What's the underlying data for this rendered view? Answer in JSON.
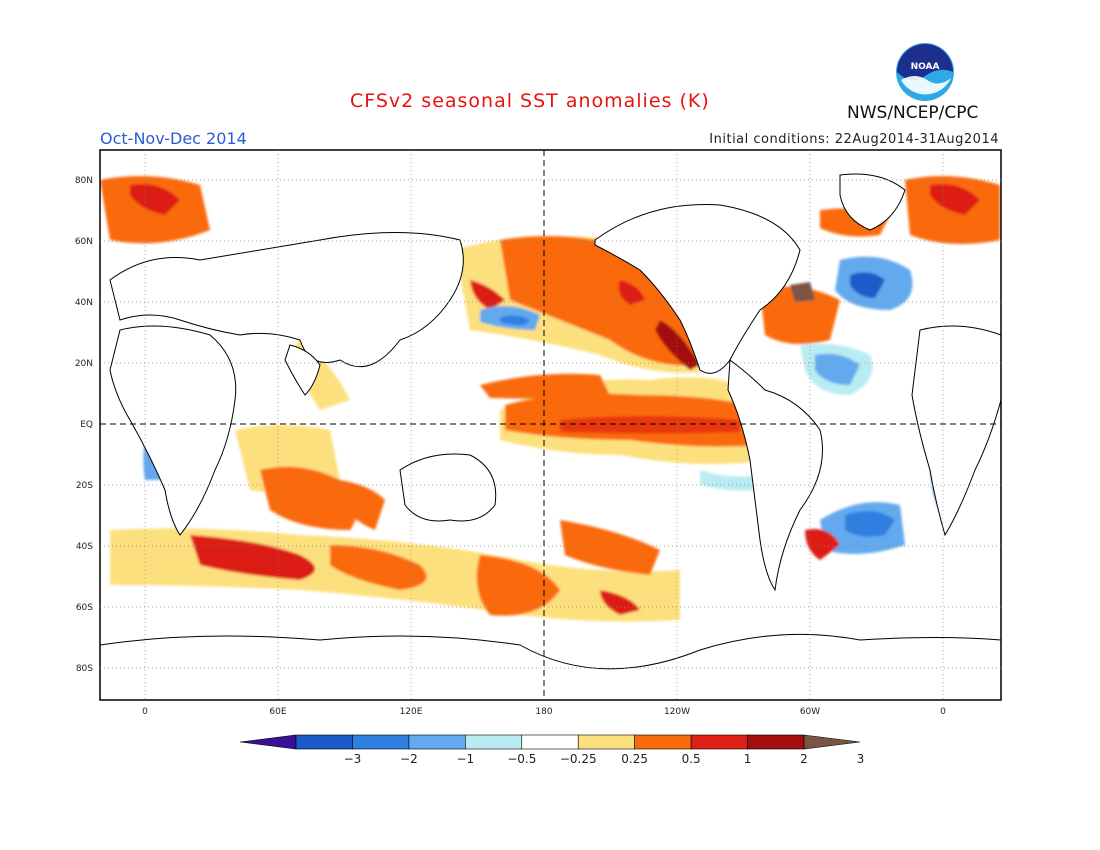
{
  "header": {
    "title": "CFSv2 seasonal SST anomalies (K)",
    "season": "Oct-Nov-Dec 2014",
    "initial_conditions": "Initial conditions: 22Aug2014-31Aug2014",
    "organization": "NWS/NCEP/CPC",
    "logo_text": "NOAA"
  },
  "map": {
    "projection": "equirectangular",
    "lon_range": [
      -20,
      380
    ],
    "lat_range": [
      -90,
      90
    ],
    "lat_ticks": [
      "80N",
      "60N",
      "40N",
      "20N",
      "EQ",
      "20S",
      "40S",
      "60S",
      "80S"
    ],
    "lon_ticks": [
      "0",
      "60E",
      "120E",
      "180",
      "120W",
      "60W",
      "0"
    ],
    "reference_lines": [
      "equator",
      "dateline"
    ]
  },
  "colorbar": {
    "labels": [
      "-3",
      "-2",
      "-1",
      "-0.5",
      "-0.25",
      "0.25",
      "0.5",
      "1",
      "2",
      "3"
    ],
    "colors": [
      "#3a1096",
      "#1a5bc8",
      "#2f7fe0",
      "#63a9ee",
      "#b9ecf2",
      "#ffffff",
      "#fde07e",
      "#fa6a0a",
      "#dd1f14",
      "#a40e0e",
      "#7b5544"
    ]
  }
}
